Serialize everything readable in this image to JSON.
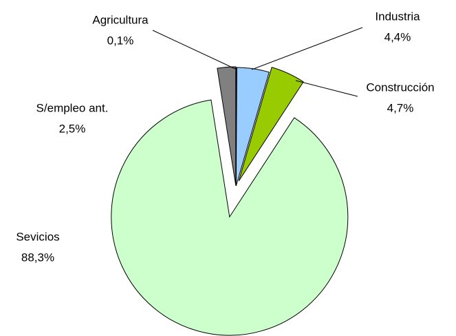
{
  "chart_data": {
    "type": "pie",
    "categories": [
      "Agricultura",
      "Industria",
      "Construcción",
      "Sevicios",
      "S/empleo ant."
    ],
    "values": [
      0.1,
      4.4,
      4.7,
      88.3,
      2.5
    ],
    "value_labels": [
      "0,1%",
      "4,4%",
      "4,7%",
      "88,3%",
      "2,5%"
    ],
    "colors": [
      "#333399",
      "#99ccff",
      "#99cc00",
      "#ccffcc",
      "#808080"
    ]
  }
}
